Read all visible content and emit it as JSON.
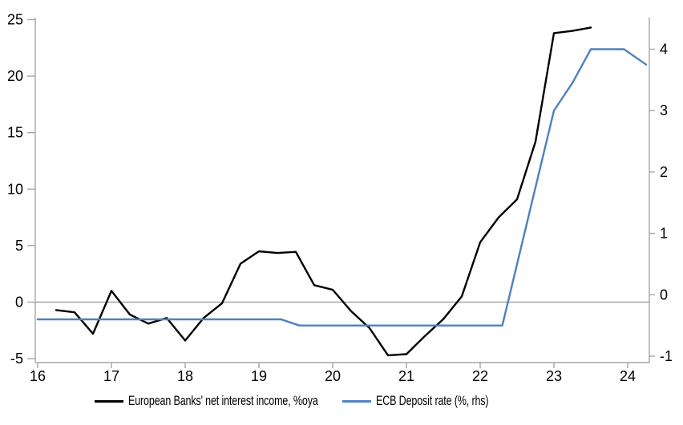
{
  "chart_data": {
    "type": "line",
    "title": "",
    "x_axis": {
      "tick_labels": [
        "16",
        "17",
        "18",
        "19",
        "20",
        "21",
        "22",
        "23",
        "24"
      ],
      "tick_values": [
        16,
        17,
        18,
        19,
        20,
        21,
        22,
        23,
        24
      ],
      "range": [
        16,
        24.3
      ],
      "grid": false
    },
    "left_axis": {
      "tick_labels": [
        "-5",
        "0",
        "5",
        "10",
        "15",
        "20",
        "25"
      ],
      "tick_values": [
        -5,
        0,
        5,
        10,
        15,
        20,
        25
      ],
      "range": [
        -5.4,
        25.2
      ],
      "grid": false
    },
    "right_axis": {
      "tick_labels": [
        "-1",
        "0",
        "1",
        "2",
        "3",
        "4"
      ],
      "tick_values": [
        -1,
        0,
        1,
        2,
        3,
        4
      ],
      "range": [
        -1.1,
        4.5
      ],
      "grid": false
    },
    "zero_gridline": true,
    "legend_position": "bottom",
    "series": [
      {
        "name": "European Banks' net interest income, %oya",
        "axis": "left",
        "color": "#000000",
        "x": [
          16.25,
          16.5,
          16.75,
          17.0,
          17.25,
          17.5,
          17.75,
          18.0,
          18.25,
          18.5,
          18.75,
          19.0,
          19.25,
          19.5,
          19.75,
          20.0,
          20.25,
          20.5,
          20.75,
          21.0,
          21.25,
          21.5,
          21.75,
          22.0,
          22.25,
          22.5,
          22.75,
          23.0,
          23.25,
          23.5
        ],
        "values": [
          -0.7,
          -0.9,
          -2.8,
          1.0,
          -1.1,
          -1.9,
          -1.4,
          -3.4,
          -1.4,
          -0.1,
          3.4,
          4.5,
          4.35,
          4.45,
          1.5,
          1.1,
          -0.8,
          -2.3,
          -4.7,
          -4.6,
          -3.0,
          -1.5,
          0.5,
          5.3,
          7.5,
          9.1,
          14.2,
          23.8,
          24.0,
          24.3
        ]
      },
      {
        "name": "ECB Deposit rate (%, rhs)",
        "axis": "right",
        "color": "#4f81bd",
        "x": [
          16.0,
          19.3,
          19.55,
          22.3,
          23.0,
          23.25,
          23.5,
          23.95,
          24.25
        ],
        "values": [
          -0.4,
          -0.4,
          -0.5,
          -0.5,
          3.0,
          3.45,
          4.0,
          4.0,
          3.75
        ]
      }
    ],
    "colors": {
      "axis": "#a6a6a6",
      "zero_line": "#a6a6a6",
      "text": "#000000",
      "background": "#ffffff"
    }
  }
}
